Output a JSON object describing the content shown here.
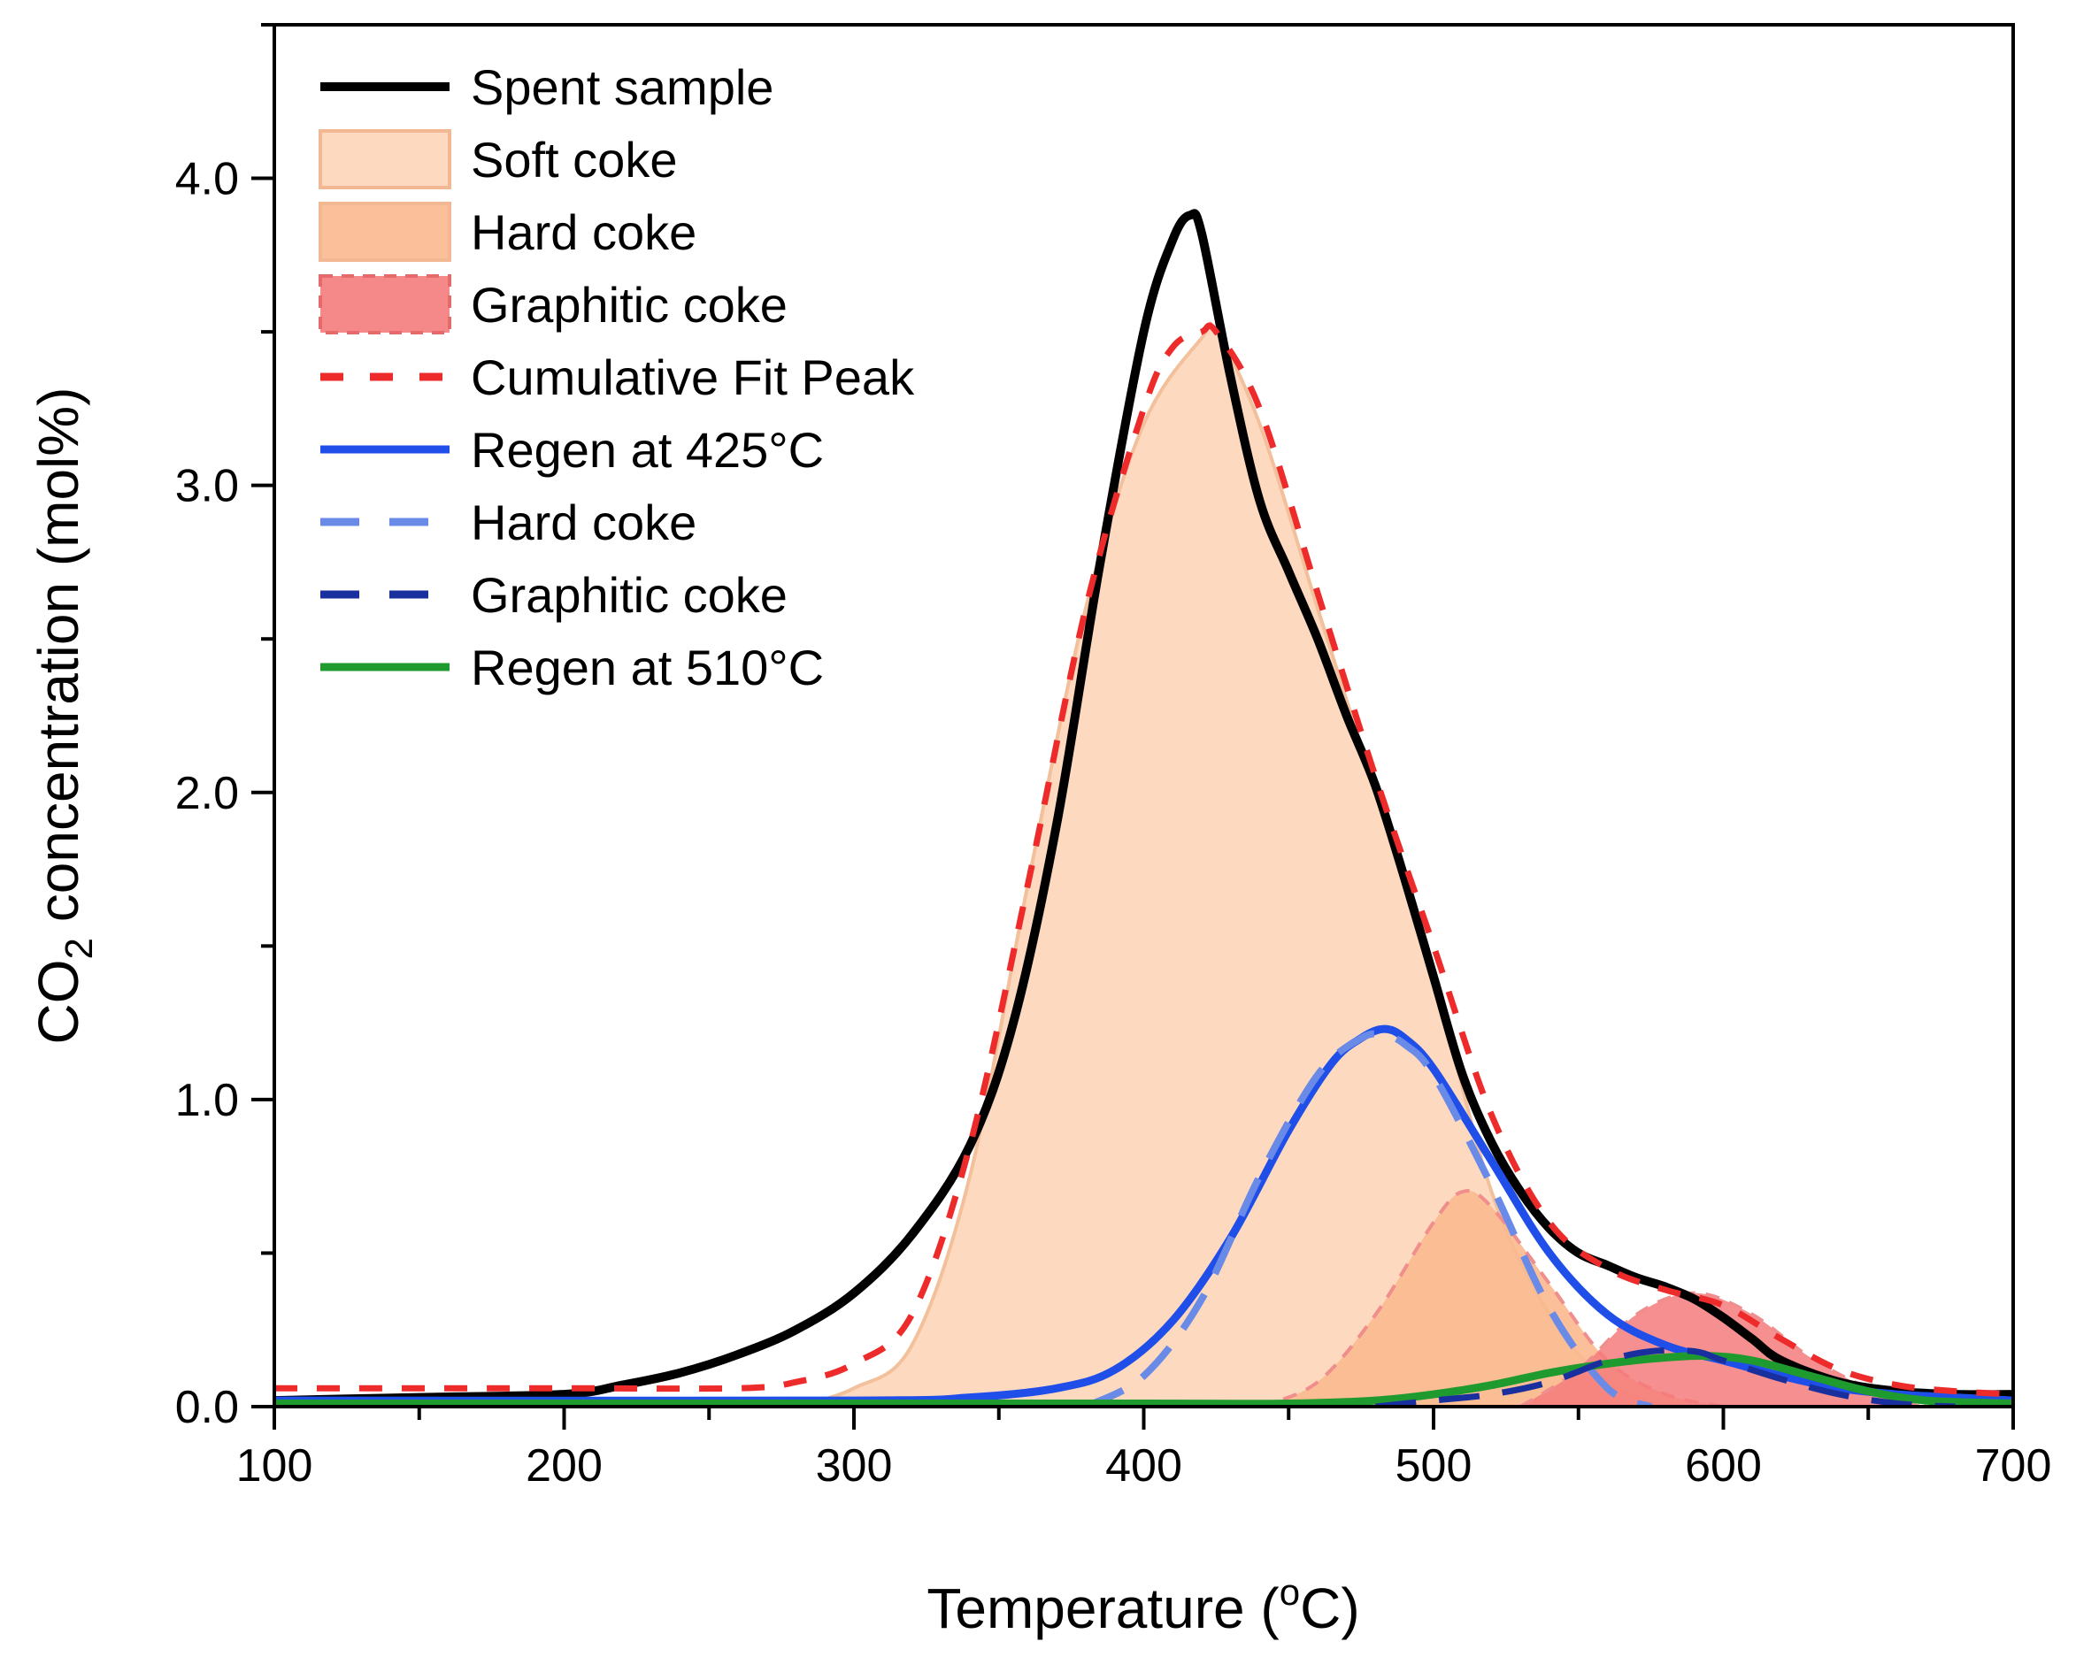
{
  "chart_data": {
    "type": "line",
    "xlabel": "Temperature (°C)",
    "xlabel_prefix": "Temperature (",
    "xlabel_sup": "o",
    "xlabel_suffix": "C)",
    "ylabel_prefix": "CO",
    "ylabel_sub": "2",
    "ylabel_suffix": " concentration (mol%)",
    "xlim": [
      100,
      700
    ],
    "ylim": [
      0,
      4.5
    ],
    "xticks": [
      "100",
      "200",
      "300",
      "400",
      "500",
      "600",
      "700"
    ],
    "yticks": [
      "0.0",
      "1.0",
      "2.0",
      "3.0",
      "4.0"
    ],
    "legend_position": "top-left",
    "legend": [
      {
        "label": "Spent sample",
        "kind": "line",
        "color": "#000000",
        "dash": "solid"
      },
      {
        "label": "Soft coke",
        "kind": "area",
        "color": "#fcd5b8",
        "dash": "solid"
      },
      {
        "label": "Hard coke",
        "kind": "area",
        "color": "#fbb98f",
        "dash": "solid"
      },
      {
        "label": "Graphitic coke",
        "kind": "area",
        "color": "#f47b7b",
        "dash": "dashed"
      },
      {
        "label": "Cumulative Fit Peak",
        "kind": "line",
        "color": "#ee2b2b",
        "dash": "dashed"
      },
      {
        "label": "Regen at 425°C",
        "kind": "line",
        "color": "#1f4fe8",
        "dash": "solid"
      },
      {
        "label": "Hard coke",
        "kind": "line",
        "color": "#6a8ae8",
        "dash": "dashed"
      },
      {
        "label": "Graphitic coke",
        "kind": "line",
        "color": "#1a2f9e",
        "dash": "dashed"
      },
      {
        "label": "Regen at 510°C",
        "kind": "line",
        "color": "#1f9a2f",
        "dash": "solid"
      }
    ],
    "series": [
      {
        "name": "Spent sample",
        "x": [
          100,
          150,
          200,
          220,
          240,
          260,
          280,
          300,
          320,
          340,
          355,
          370,
          385,
          400,
          410,
          416,
          420,
          430,
          440,
          450,
          460,
          470,
          480,
          490,
          500,
          510,
          520,
          530,
          540,
          550,
          560,
          570,
          580,
          590,
          600,
          610,
          620,
          640,
          660,
          680,
          700
        ],
        "y": [
          0.02,
          0.03,
          0.04,
          0.07,
          0.11,
          0.17,
          0.25,
          0.37,
          0.56,
          0.85,
          1.25,
          1.9,
          2.75,
          3.5,
          3.8,
          3.88,
          3.82,
          3.35,
          2.95,
          2.72,
          2.5,
          2.25,
          2.02,
          1.72,
          1.4,
          1.08,
          0.86,
          0.7,
          0.58,
          0.5,
          0.46,
          0.42,
          0.39,
          0.35,
          0.29,
          0.22,
          0.15,
          0.08,
          0.05,
          0.04,
          0.04
        ]
      },
      {
        "name": "Soft coke",
        "x": [
          280,
          300,
          320,
          340,
          360,
          380,
          400,
          420,
          425,
          440,
          460,
          480,
          500,
          520,
          540,
          560,
          580
        ],
        "y": [
          0.0,
          0.06,
          0.2,
          0.75,
          1.7,
          2.6,
          3.2,
          3.48,
          3.5,
          3.2,
          2.6,
          2.0,
          1.4,
          0.7,
          0.3,
          0.08,
          0.0
        ]
      },
      {
        "name": "Hard coke",
        "x": [
          440,
          460,
          480,
          500,
          510,
          520,
          540,
          560,
          580,
          600
        ],
        "y": [
          0.0,
          0.08,
          0.3,
          0.6,
          0.7,
          0.65,
          0.4,
          0.15,
          0.04,
          0.0
        ]
      },
      {
        "name": "Graphitic coke",
        "x": [
          530,
          550,
          570,
          590,
          610,
          630,
          650,
          670
        ],
        "y": [
          0.0,
          0.12,
          0.3,
          0.37,
          0.3,
          0.16,
          0.06,
          0.0
        ]
      },
      {
        "name": "Cumulative Fit Peak",
        "x": [
          100,
          200,
          260,
          280,
          300,
          320,
          340,
          360,
          380,
          400,
          410,
          420,
          425,
          440,
          460,
          480,
          500,
          520,
          540,
          560,
          580,
          600,
          620,
          640,
          660,
          680,
          700
        ],
        "y": [
          0.06,
          0.06,
          0.06,
          0.08,
          0.14,
          0.3,
          0.85,
          1.7,
          2.6,
          3.25,
          3.45,
          3.5,
          3.5,
          3.25,
          2.65,
          2.05,
          1.5,
          0.95,
          0.6,
          0.45,
          0.38,
          0.33,
          0.22,
          0.12,
          0.07,
          0.05,
          0.04
        ]
      },
      {
        "name": "Regen at 425°C",
        "x": [
          100,
          300,
          340,
          370,
          390,
          410,
          430,
          450,
          465,
          475,
          483,
          490,
          500,
          520,
          540,
          560,
          580,
          600,
          620,
          640,
          660,
          680,
          700
        ],
        "y": [
          0.02,
          0.02,
          0.03,
          0.06,
          0.12,
          0.28,
          0.55,
          0.9,
          1.12,
          1.2,
          1.23,
          1.2,
          1.1,
          0.8,
          0.5,
          0.3,
          0.2,
          0.15,
          0.1,
          0.06,
          0.04,
          0.03,
          0.02
        ]
      },
      {
        "name": "Hard coke",
        "x": [
          380,
          400,
          420,
          440,
          460,
          475,
          483,
          490,
          500,
          520,
          540,
          560,
          575
        ],
        "y": [
          0.0,
          0.1,
          0.35,
          0.75,
          1.08,
          1.2,
          1.21,
          1.18,
          1.08,
          0.72,
          0.32,
          0.06,
          0.0
        ]
      },
      {
        "name": "Graphitic coke",
        "x": [
          480,
          500,
          520,
          540,
          560,
          575,
          590,
          600,
          620,
          640,
          660,
          680
        ],
        "y": [
          0.0,
          0.02,
          0.04,
          0.08,
          0.15,
          0.18,
          0.18,
          0.15,
          0.09,
          0.04,
          0.01,
          0.0
        ]
      },
      {
        "name": "Regen at 510°C",
        "x": [
          100,
          400,
          450,
          480,
          500,
          520,
          540,
          560,
          580,
          595,
          610,
          630,
          650,
          670,
          700
        ],
        "y": [
          0.01,
          0.01,
          0.01,
          0.02,
          0.04,
          0.07,
          0.11,
          0.14,
          0.16,
          0.165,
          0.15,
          0.1,
          0.05,
          0.02,
          0.01
        ]
      }
    ]
  }
}
